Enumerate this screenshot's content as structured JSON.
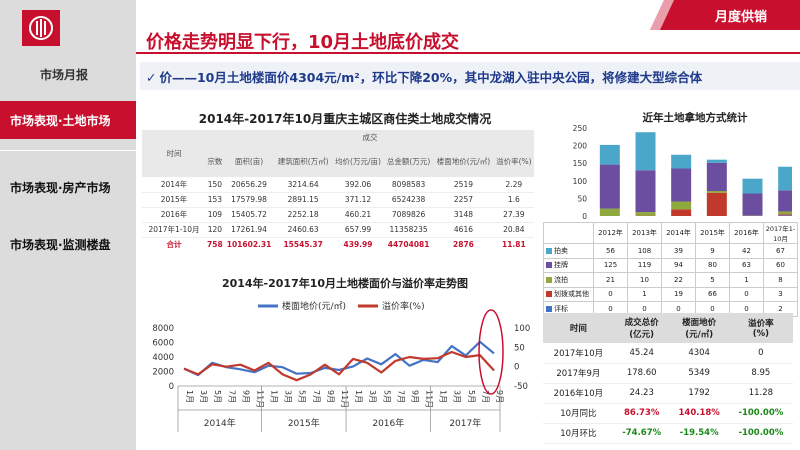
{
  "brand": {
    "name": "市场月报",
    "corner_label": "月度供销",
    "accent": "#c8102e"
  },
  "sidebar": {
    "items": [
      {
        "label": "市场表现·土地市场",
        "active": true
      },
      {
        "label": "市场表现·房产市场",
        "active": false
      },
      {
        "label": "市场表现·监测楼盘",
        "active": false
      }
    ]
  },
  "header": {
    "title": "价格走势明显下行，10月土地底价成交",
    "subtitle": "价——10月土地楼面价4304元/m²，环比下降20%，其中龙湖入驻中央公园，将修建大型综合体"
  },
  "supply_table": {
    "title": "2014年-2017年10月重庆主城区商住类土地成交情况",
    "group_header": "成交",
    "time_header": "时间",
    "columns": [
      "宗数",
      "面积(亩)",
      "建筑面积(万㎡)",
      "均价(万元/亩)",
      "总金额(万元)",
      "楼面地价(元/㎡)",
      "溢价率(%)"
    ],
    "rows": [
      [
        "2014年",
        "150",
        "20656.29",
        "3214.64",
        "392.06",
        "8098583",
        "2519",
        "2.29"
      ],
      [
        "2015年",
        "153",
        "17579.98",
        "2891.15",
        "371.12",
        "6524238",
        "2257",
        "1.6"
      ],
      [
        "2016年",
        "109",
        "15405.72",
        "2252.18",
        "460.21",
        "7089826",
        "3148",
        "27.39"
      ],
      [
        "2017年1-10月",
        "120",
        "17261.94",
        "2460.63",
        "657.99",
        "11358235",
        "4616",
        "20.84"
      ]
    ],
    "total": [
      "合计",
      "758",
      "101602.31",
      "15545.37",
      "439.99",
      "44704081",
      "2876",
      "11.81"
    ]
  },
  "chart_data": [
    {
      "type": "line",
      "title": "2014年-2017年10月土地楼面价与溢价率走势图",
      "legend_position": "top",
      "x": [
        "1月",
        "3月",
        "5月",
        "7月",
        "9月",
        "11月",
        "1月",
        "3月",
        "5月",
        "7月",
        "9月",
        "11月",
        "1月",
        "3月",
        "5月",
        "7月",
        "9月",
        "11月",
        "1月",
        "3月",
        "5月",
        "7月",
        "9月"
      ],
      "year_labels": [
        "2014年",
        "2015年",
        "2016年",
        "2017年"
      ],
      "y_left": {
        "ticks": [
          "0",
          "2000",
          "4000",
          "6000",
          "8000"
        ],
        "range": [
          0,
          8000
        ]
      },
      "y_right": {
        "ticks": [
          "-50",
          "0",
          "50",
          "100"
        ],
        "range": [
          -50,
          100
        ]
      },
      "series": [
        {
          "name": "楼面地价(元/㎡)",
          "axis": "left",
          "color": "#4472c4",
          "values": [
            2400,
            1500,
            3200,
            2600,
            2300,
            1900,
            2800,
            2600,
            1700,
            1800,
            2500,
            2200,
            2700,
            3800,
            3000,
            4400,
            2800,
            3600,
            3300,
            5500,
            4200,
            6100,
            4500
          ]
        },
        {
          "name": "溢价率(%)",
          "axis": "right",
          "color": "#c0392b",
          "values": [
            -5,
            -20,
            6,
            0,
            5,
            -10,
            10,
            -20,
            -35,
            -20,
            5,
            -20,
            20,
            10,
            -15,
            15,
            25,
            20,
            22,
            38,
            25,
            30,
            -10
          ]
        }
      ]
    },
    {
      "type": "bar",
      "stacked": true,
      "title": "近年土地拿地方式统计",
      "categories": [
        "2012年",
        "2013年",
        "2014年",
        "2015年",
        "2016年",
        "2017年1-10月"
      ],
      "ylim": [
        0,
        250
      ],
      "y_ticks": [
        "0",
        "50",
        "100",
        "150",
        "200",
        "250"
      ],
      "series": [
        {
          "name": "评标",
          "color": "#4472c4",
          "values": [
            0,
            0,
            0,
            0,
            0,
            2
          ]
        },
        {
          "name": "划拨或其他",
          "color": "#c0392b",
          "values": [
            0,
            1,
            19,
            66,
            0,
            3
          ]
        },
        {
          "name": "流拍",
          "color": "#8faa3c",
          "values": [
            21,
            10,
            22,
            5,
            1,
            8
          ]
        },
        {
          "name": "挂牌",
          "color": "#6b4ea0",
          "values": [
            125,
            119,
            94,
            80,
            63,
            60
          ]
        },
        {
          "name": "拍卖",
          "color": "#4aa7c9",
          "values": [
            56,
            108,
            39,
            9,
            42,
            67
          ]
        }
      ],
      "table_order": [
        "拍卖",
        "挂牌",
        "流拍",
        "划拨或其他",
        "评标"
      ]
    }
  ],
  "summary_table": {
    "headers": [
      "时间",
      "成交总价\n(亿元)",
      "楼面地价\n(元/㎡)",
      "溢价率\n(%)"
    ],
    "rows": [
      {
        "cells": [
          "2017年10月",
          "45.24",
          "4304",
          "0"
        ],
        "style": "normal"
      },
      {
        "cells": [
          "2017年9月",
          "178.60",
          "5349",
          "8.95"
        ],
        "style": "normal"
      },
      {
        "cells": [
          "2016年10月",
          "24.23",
          "1792",
          "11.28"
        ],
        "style": "normal"
      },
      {
        "cells": [
          "10月同比",
          "86.73%",
          "140.18%",
          "-100.00%"
        ],
        "style": "yoy"
      },
      {
        "cells": [
          "10月环比",
          "-74.67%",
          "-19.54%",
          "-100.00%"
        ],
        "style": "mom"
      }
    ]
  }
}
